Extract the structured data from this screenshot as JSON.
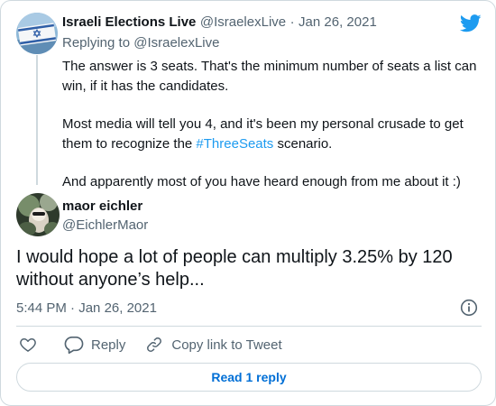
{
  "parent_tweet": {
    "display_name": "Israeli Elections Live",
    "handle": "@IsraelexLive",
    "date": "Jan 26, 2021",
    "separator": "·",
    "replying_to_prefix": "Replying to ",
    "replying_to_handle": "@IsraelexLive",
    "paragraph_1": "The answer is 3 seats. That's the minimum number of seats a list can win, if it has the candidates.",
    "paragraph_2_before": "Most media will tell you 4, and it's been my personal crusade to get them to recognize the ",
    "paragraph_2_hashtag": "#ThreeSeats",
    "paragraph_2_after": " scenario.",
    "paragraph_3": "And apparently most of you have heard enough from me about it :)"
  },
  "main_tweet": {
    "display_name": "maor eichler",
    "handle": "@EichlerMaor",
    "text": "I would hope a lot of people can multiply 3.25% by 120 without anyone’s help...",
    "time": "5:44 PM",
    "separator": "·",
    "date": "Jan 26, 2021"
  },
  "actions": {
    "like_icon": "heart-icon",
    "reply_label": "Reply",
    "copy_link_label": "Copy link to Tweet"
  },
  "read_replies_label": "Read 1 reply",
  "colors": {
    "accent": "#1d9bf0",
    "text": "#0f1419",
    "muted": "#536471",
    "border": "#cfd9de"
  }
}
